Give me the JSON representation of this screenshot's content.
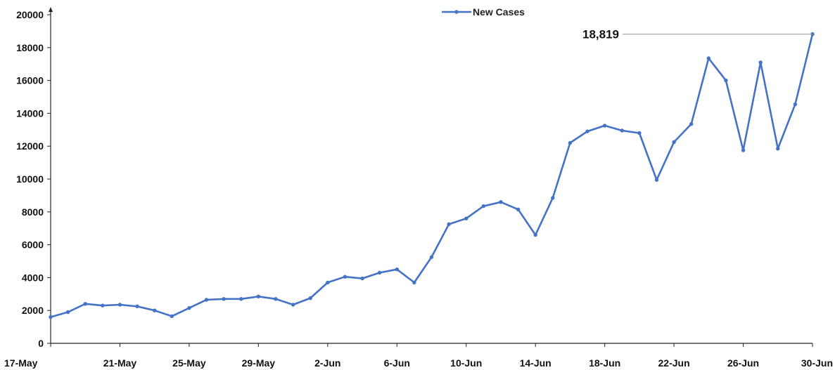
{
  "chart_data": {
    "type": "line",
    "title": "",
    "xlabel": "",
    "ylabel": "",
    "ylim": [
      0,
      20000
    ],
    "yticks": [
      0,
      2000,
      4000,
      6000,
      8000,
      10000,
      12000,
      14000,
      16000,
      18000,
      20000
    ],
    "xticks": [
      "17-May",
      "21-May",
      "25-May",
      "29-May",
      "2-Jun",
      "6-Jun",
      "10-Jun",
      "14-Jun",
      "18-Jun",
      "22-Jun",
      "26-Jun",
      "30-Jun"
    ],
    "grid": false,
    "legend": {
      "position": "top-center"
    },
    "series": [
      {
        "name": "New Cases",
        "color": "#4472C4",
        "x": [
          "17-May",
          "18-May",
          "19-May",
          "20-May",
          "21-May",
          "22-May",
          "23-May",
          "24-May",
          "25-May",
          "26-May",
          "27-May",
          "28-May",
          "29-May",
          "30-May",
          "31-May",
          "1-Jun",
          "2-Jun",
          "3-Jun",
          "4-Jun",
          "5-Jun",
          "6-Jun",
          "7-Jun",
          "8-Jun",
          "9-Jun",
          "10-Jun",
          "11-Jun",
          "12-Jun",
          "13-Jun",
          "14-Jun",
          "15-Jun",
          "16-Jun",
          "17-Jun",
          "18-Jun",
          "19-Jun",
          "20-Jun",
          "21-Jun",
          "22-Jun",
          "23-Jun",
          "24-Jun",
          "25-Jun",
          "26-Jun",
          "27-Jun",
          "28-Jun",
          "29-Jun",
          "30-Jun"
        ],
        "values": [
          1600,
          1900,
          2400,
          2300,
          2350,
          2250,
          2000,
          1650,
          2150,
          2650,
          2700,
          2700,
          2850,
          2700,
          2350,
          2750,
          3700,
          4050,
          3950,
          4300,
          4500,
          3700,
          5250,
          7250,
          7600,
          8350,
          8600,
          8150,
          6600,
          8850,
          12200,
          12900,
          13250,
          12950,
          12800,
          9950,
          12250,
          13350,
          17350,
          16000,
          11750,
          17100,
          11850,
          14550,
          18819
        ]
      }
    ],
    "annotations": [
      {
        "text": "18,819",
        "x": "30-Jun",
        "y": 18819
      }
    ]
  }
}
